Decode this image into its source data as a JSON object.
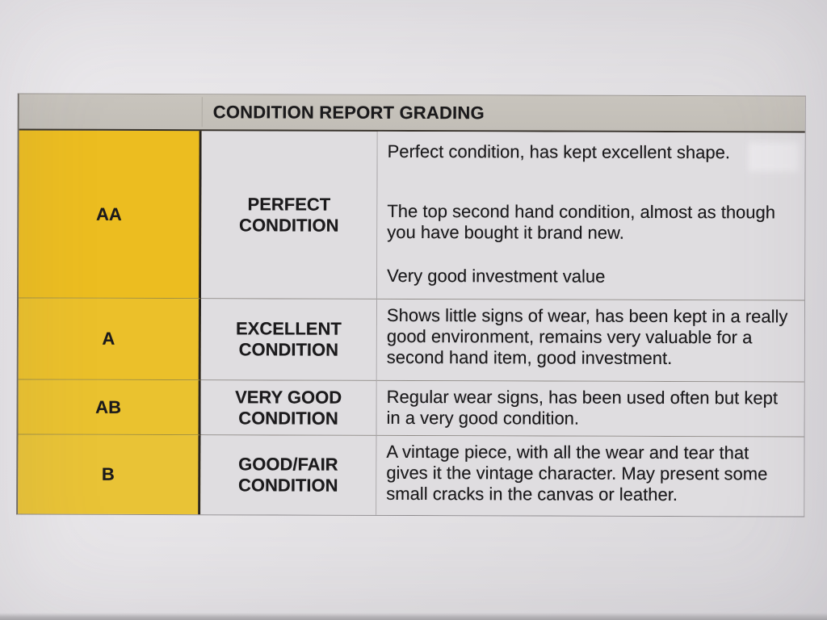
{
  "table": {
    "header": {
      "title": "CONDITION REPORT GRADING"
    },
    "rows": [
      {
        "grade": "AA",
        "condition_line1": "PERFECT",
        "condition_line2": "CONDITION",
        "paragraphs": [
          "Perfect condition, has kept excellent shape.",
          "The top second hand condition, almost as though you have bought it brand new.",
          "Very good investment value"
        ]
      },
      {
        "grade": "A",
        "condition_line1": "EXCELLENT",
        "condition_line2": "CONDITION",
        "paragraphs": [
          "Shows little signs of wear, has been kept in a really good environment, remains very valuable for a second hand item, good investment."
        ]
      },
      {
        "grade": "AB",
        "condition_line1": "VERY GOOD",
        "condition_line2": "CONDITION",
        "paragraphs": [
          "Regular wear signs, has been used often but kept in a very good condition."
        ]
      },
      {
        "grade": "B",
        "condition_line1": "GOOD/FAIR",
        "condition_line2": "CONDITION",
        "paragraphs": [
          "A vintage piece, with all the wear and tear that gives it the vintage character. May present some small cracks in the canvas or leather."
        ]
      }
    ],
    "colors": {
      "grade_column_yellow": "#ebc02a",
      "header_gray": "#c3bfb8",
      "cell_gray": "#dfdde0",
      "text": "#1b1a1c"
    }
  }
}
